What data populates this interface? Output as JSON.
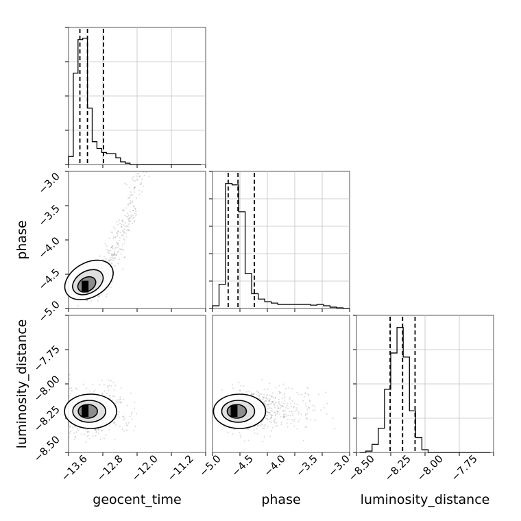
{
  "chart_data": [
    {
      "type": "histogram",
      "panel": "geocent_time",
      "x": [
        -13.8,
        -13.7,
        -13.6,
        -13.5,
        -13.4,
        -13.3,
        -13.2,
        -13.1,
        -13.0,
        -12.9,
        -12.8,
        -12.7,
        -12.6,
        -12.5,
        -12.4,
        -12.3,
        -12.2,
        -12.1,
        -12.0,
        -11.9,
        -11.8,
        -11.7,
        -11.6,
        -11.5,
        -11.4,
        -11.3,
        -11.2,
        -11.1,
        -11.0
      ],
      "values": [
        0.06,
        0.68,
        0.93,
        0.94,
        0.42,
        0.17,
        0.12,
        0.09,
        0.08,
        0.08,
        0.05,
        0.02,
        0.01,
        0,
        0,
        0,
        0,
        0,
        0,
        0,
        0,
        0,
        0,
        0,
        0,
        0,
        0,
        0
      ],
      "quantiles": [
        -13.56,
        -13.4,
        -13.06
      ],
      "xlim": [
        -13.8,
        -10.9
      ],
      "grid": true
    },
    {
      "type": "scatter",
      "panel": "geocent_time vs phase",
      "xlim": [
        -13.8,
        -10.9
      ],
      "ylim": [
        -5.05,
        -2.95
      ],
      "density_peak": {
        "x": -13.45,
        "y": -4.72
      },
      "xlabel": "",
      "ylabel": "phase",
      "yticks": [
        -3.0,
        -3.5,
        -4.0,
        -4.5,
        -5.0
      ]
    },
    {
      "type": "histogram",
      "panel": "phase",
      "x": [
        -5.05,
        -4.95,
        -4.85,
        -4.75,
        -4.65,
        -4.55,
        -4.45,
        -4.35,
        -4.25,
        -4.15,
        -4.05,
        -3.95,
        -3.85,
        -3.75,
        -3.65,
        -3.55,
        -3.45,
        -3.35,
        -3.25,
        -3.15,
        -3.05,
        -2.95
      ],
      "values": [
        0.02,
        0.18,
        0.93,
        0.92,
        0.72,
        0.26,
        0.11,
        0.07,
        0.05,
        0.04,
        0.03,
        0.03,
        0.03,
        0.03,
        0.03,
        0.025,
        0.03,
        0.02,
        0.01,
        0.005,
        0.0
      ],
      "quantiles": [
        -4.81,
        -4.66,
        -4.41
      ],
      "xlim": [
        -5.05,
        -2.95
      ],
      "grid": true
    },
    {
      "type": "scatter",
      "panel": "geocent_time vs luminosity_distance",
      "xlim": [
        -13.8,
        -10.9
      ],
      "ylim": [
        -8.6,
        -7.5
      ],
      "density_peak": {
        "x": -13.45,
        "y": -8.27
      },
      "xlabel": "geocent_time",
      "ylabel": "luminosity_distance",
      "xticks": [
        -13.6,
        -12.8,
        -12.0,
        -11.2
      ],
      "yticks": [
        -7.75,
        -8.0,
        -8.25,
        -8.5
      ]
    },
    {
      "type": "scatter",
      "panel": "phase vs luminosity_distance",
      "xlim": [
        -5.05,
        -2.95
      ],
      "ylim": [
        -8.6,
        -7.5
      ],
      "density_peak": {
        "x": -4.72,
        "y": -8.27
      },
      "xlabel": "phase",
      "ylabel": "",
      "xticks": [
        -5.0,
        -4.5,
        -4.0,
        -3.5,
        -3.0
      ]
    },
    {
      "type": "histogram",
      "panel": "luminosity_distance",
      "x": [
        -8.625,
        -8.575,
        -8.525,
        -8.475,
        -8.425,
        -8.375,
        -8.325,
        -8.275,
        -8.225,
        -8.175,
        -8.125,
        -8.075,
        -8.025,
        -7.975,
        -7.925,
        -7.875,
        -7.825,
        -7.775,
        -7.725,
        -7.675,
        -7.625,
        -7.575
      ],
      "values": [
        0.0,
        0.01,
        0.06,
        0.18,
        0.47,
        0.74,
        0.93,
        0.71,
        0.31,
        0.11,
        0.02,
        0.0,
        0.0,
        0.0,
        0.0,
        0.0,
        0.0,
        0.0,
        0.0,
        0.0,
        0.0
      ],
      "quantiles": [
        -8.38,
        -8.28,
        -8.18
      ],
      "xlim": [
        -8.65,
        -7.55
      ],
      "xlabel": "luminosity_distance",
      "xticks": [
        -8.5,
        -8.25,
        -8.0,
        -7.75
      ],
      "grid": true
    }
  ],
  "labels": {
    "x1": "geocent_time",
    "x2": "phase",
    "x3": "luminosity_distance",
    "y2": "phase",
    "y3": "luminosity_distance"
  },
  "ticks": {
    "geocent_time": [
      "−13.6",
      "−12.8",
      "−12.0",
      "−11.2"
    ],
    "phase_y": [
      "−3.0",
      "−3.5",
      "−4.0",
      "−4.5",
      "−5.0"
    ],
    "phase_x": [
      "−5.0",
      "−4.5",
      "−4.0",
      "−3.5",
      "−3.0"
    ],
    "lumdist_y": [
      "−7.75",
      "−8.00",
      "−8.25",
      "−8.50"
    ],
    "lumdist_x": [
      "−8.50",
      "−8.25",
      "−8.00",
      "−7.75"
    ]
  }
}
